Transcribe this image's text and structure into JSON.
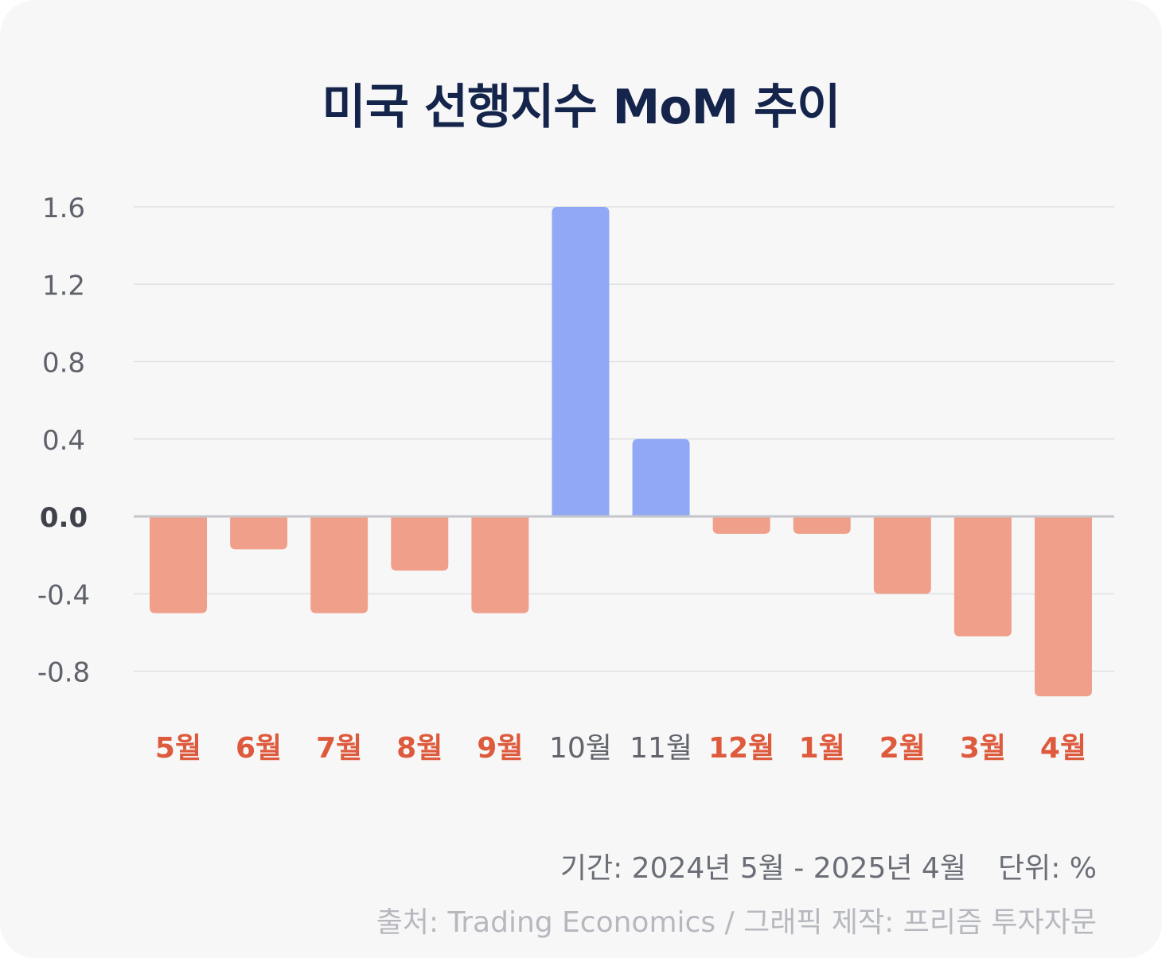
{
  "title": "미국 선행지수 MoM 추이",
  "chart_data": {
    "type": "bar",
    "title": "미국 선행지수 MoM 추이",
    "xlabel": "",
    "ylabel": "",
    "categories": [
      "5월",
      "6월",
      "7월",
      "8월",
      "9월",
      "10월",
      "11월",
      "12월",
      "1월",
      "2월",
      "3월",
      "4월"
    ],
    "values": [
      -0.5,
      -0.17,
      -0.5,
      -0.28,
      -0.5,
      1.6,
      0.4,
      -0.09,
      -0.09,
      -0.4,
      -0.62,
      -0.93
    ],
    "yticks": [
      "1.6",
      "1.2",
      "0.8",
      "0.4",
      "0.0",
      "-0.4",
      "-0.8"
    ],
    "ytick_values": [
      1.6,
      1.2,
      0.8,
      0.4,
      0.0,
      -0.4,
      -0.8
    ],
    "ylim": [
      -0.95,
      1.6
    ],
    "grid": true,
    "colors": {
      "positive_bar": "#91a8f7",
      "negative_bar": "#f0a08a",
      "negative_label": "#de5a3d",
      "positive_label": "#62646c",
      "grid": "#dfe0e3",
      "zero_line": "#c4c6cb",
      "tick_label": "#5f626a",
      "zero_label": "#3f424a"
    }
  },
  "footer": {
    "period": "기간: 2024년 5월 - 2025년 4월",
    "unit": "단위: %",
    "source": "출처: Trading Economics / 그래픽 제작: 프리즘 투자자문"
  }
}
